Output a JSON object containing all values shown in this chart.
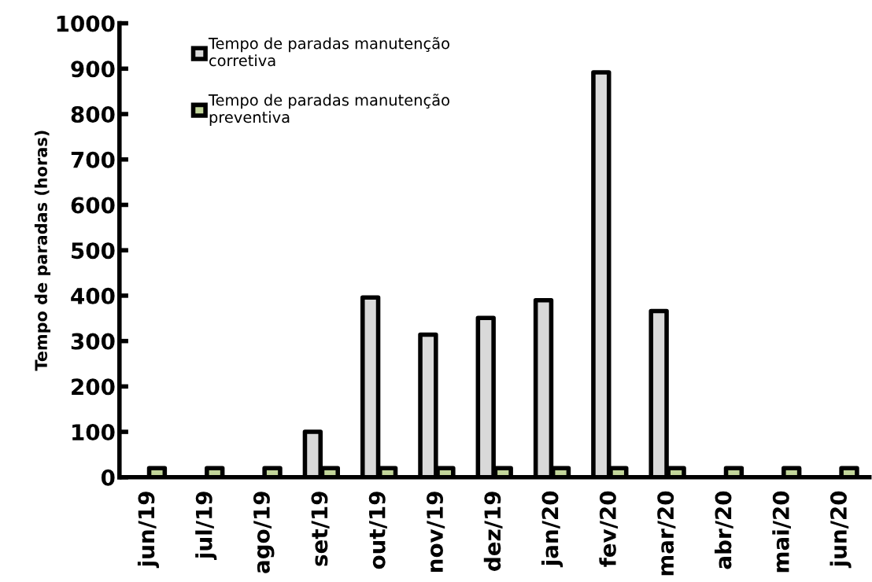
{
  "chart_data": {
    "type": "bar",
    "ylabel": "Tempo de paradas (horas)",
    "categories": [
      "jun/19",
      "jul/19",
      "ago/19",
      "set/19",
      "out/19",
      "nov/19",
      "dez/19",
      "jan/20",
      "fev/20",
      "mar/20",
      "abr/20",
      "mai/20",
      "jun/20"
    ],
    "series": [
      {
        "name": "Tempo de paradas manutenção\ncorretiva",
        "color": "#d9d9d9",
        "values": [
          null,
          null,
          null,
          100,
          396,
          314,
          351,
          390,
          892,
          366,
          null,
          null,
          null
        ]
      },
      {
        "name": "Tempo de paradas manutenção\npreventiva",
        "color": "#c3d69b",
        "values": [
          20,
          20,
          20,
          20,
          20,
          20,
          20,
          20,
          20,
          20,
          20,
          20,
          20
        ]
      }
    ],
    "ylim": [
      0,
      1000
    ],
    "yticks": [
      0,
      100,
      200,
      300,
      400,
      500,
      600,
      700,
      800,
      900,
      1000
    ],
    "grid": false,
    "legend": "top left"
  }
}
